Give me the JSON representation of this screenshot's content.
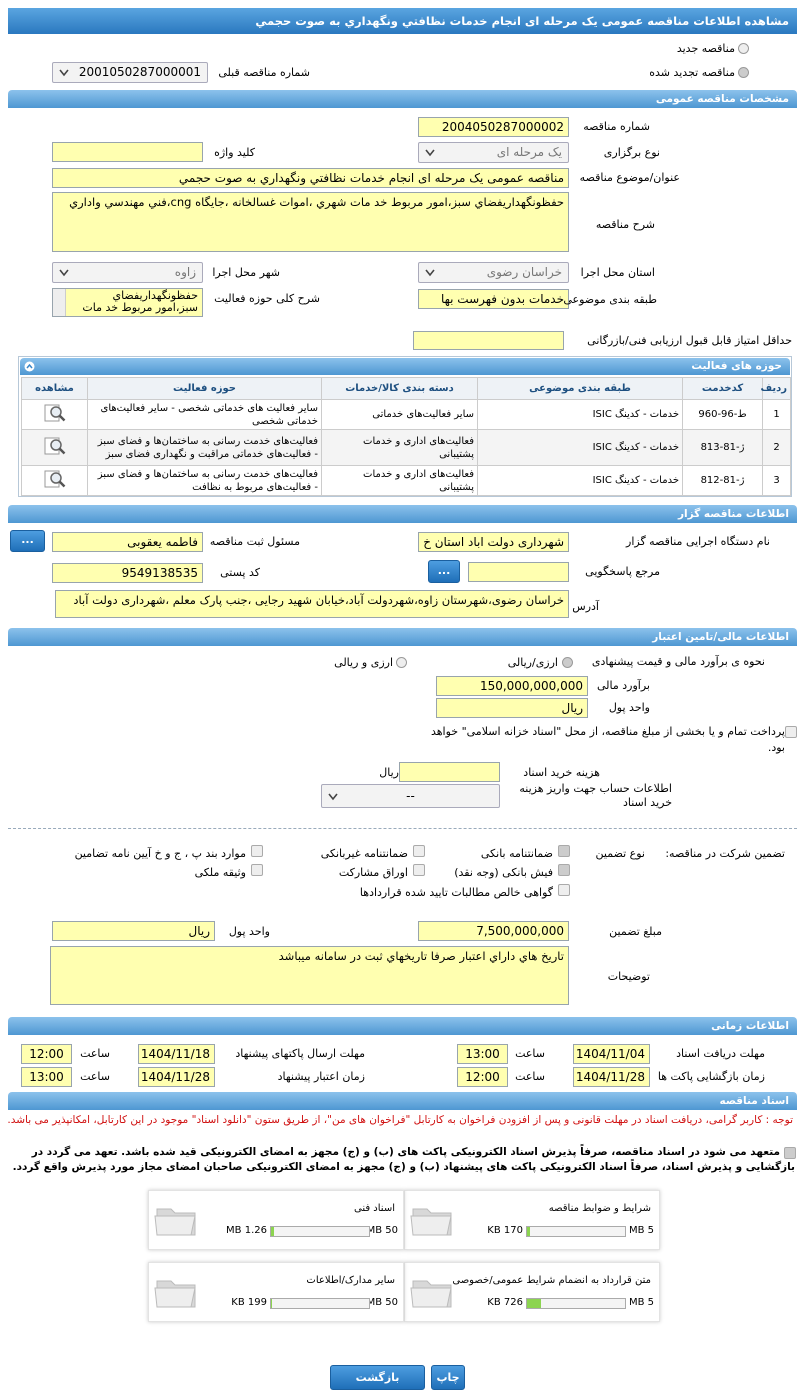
{
  "header": {
    "title": "مشاهده اطلاعات مناقصه عمومی یک مرحله ای انجام خدمات نظافتي ونگهداري به صوت حجمي"
  },
  "tender_kind": {
    "options": [
      "مناقصه جدید",
      "مناقصه تجدید شده"
    ],
    "previous_label": "شماره مناقصه قبلی",
    "previous_number": "2001050287000001"
  },
  "general": {
    "title": "مشخصات مناقصه عمومی",
    "number_label": "شماره مناقصه",
    "number": "2004050287000002",
    "holding_label": "نوع برگزاری",
    "holding": "یک مرحله ای",
    "keyword_label": "کلید واژه",
    "subject_label": "عنوان/موضوع مناقصه",
    "subject": "مناقصه عمومی یک مرحله ای انجام خدمات نظافتي ونگهداري به صوت حجمي",
    "description_label": "شرح مناقصه",
    "description": "حفظونگهداريفضاي سبز،امور مربوط خد مات شهري ،اموات غسالخانه ،جايگاه cng،فني مهندسي واداري",
    "province_label": "استان محل اجرا",
    "province": "خراسان رضوی",
    "city_label": "شهر محل اجرا",
    "city": "زاوه",
    "category_label": "طبقه بندی موضوعی",
    "category": "خدمات بدون فهرست بها",
    "scope_label": "شرح کلی حوزه فعالیت",
    "scope": "حفظونگهداريفضاي سبز،امور مربوط خد مات",
    "min_score_label": "حداقل امتیاز قابل قبول ارزیابی فنی/بازرگانی"
  },
  "activities": {
    "title": "حوزه های فعالیت",
    "columns": [
      "ردیف",
      "کدخدمت",
      "طبقه بندی موضوعی",
      "دسته بندی کالا/خدمات",
      "حوزه فعالیت",
      "مشاهده"
    ],
    "rows": [
      [
        1,
        "ط-96-960",
        "خدمات - کدینگ ISIC",
        "سایر فعالیت‌های خدماتی",
        "سایر فعالیت های خدماتی شخصی - سایر فعالیت‌های خدماتی شخصی"
      ],
      [
        2,
        "ژ-81-813",
        "خدمات - کدینگ ISIC",
        "فعالیت‌های اداری و خدمات پشتیبانی",
        "فعالیت‌های خدمت رسانی به ساختمان‌ها و فضای سبز - فعالیت‌های خدماتی مراقبت و نگهداری فضای سبز"
      ],
      [
        3,
        "ژ-81-812",
        "خدمات - کدینگ ISIC",
        "فعالیت‌های اداری و خدمات پشتیبانی",
        "فعالیت‌های خدمت رسانی به ساختمان‌ها و فضای سبز - فعالیت‌های مربوط به نظافت"
      ]
    ]
  },
  "organizer": {
    "title": "اطلاعات مناقصه گزار",
    "agency_label": "نام دستگاه اجرایی مناقصه گزار",
    "agency": "شهرداری دولت اباد استان خ",
    "responsible_label": "مسئول ثبت مناقصه",
    "responsible": "فاطمه یعقوبی",
    "browse": "...",
    "reference_label": "مرجع پاسخگویی",
    "postal_label": "کد پستی",
    "postal_code": "9549138535",
    "address_label": "آدرس",
    "address": "خراسان رضوی،شهرستان زاوه،شهردولت آباد،خیابان شهید رجایی ،جنب پارک معلم ،شهرداری دولت آباد"
  },
  "finance": {
    "title": "اطلاعات مالی/تامین اعتبار",
    "method_label": "نحوه ی برآورد مالی و قیمت پیشنهادی",
    "method_options": [
      "ارزی/ریالی",
      "ارزی و ریالی"
    ],
    "estimate_label": "برآورد مالی",
    "estimate": "150,000,000,000",
    "currency_label": "واحد پول",
    "currency": "ریال",
    "treasury_note": "پرداخت تمام و یا بخشی از مبلغ مناقصه، از محل \"اسناد خزانه اسلامی\" خواهد بود.",
    "doc_fee_label": "هزینه خرید اسناد",
    "doc_fee_unit": "ریال",
    "account_label": "اطلاعات حساب جهت واریز هزینه خرید اسناد",
    "account": "--"
  },
  "guarantee": {
    "title": "تضمین شرکت در مناقصه:",
    "type_label": "نوع تضمین",
    "options": [
      "ضمانتنامه بانکی",
      "ضمانتنامه غیربانکی",
      "موارد بند پ ، ج و خ آیین نامه تضامین",
      "فیش بانکی (وجه نقد)",
      "اوراق مشارکت",
      "وثیقه ملکی",
      "گواهی خالص مطالبات تایید شده قراردادها"
    ],
    "amount_label": "مبلغ تضمین",
    "amount": "7,500,000,000",
    "currency_label": "واحد پول",
    "currency": "ریال",
    "notes_label": "توضیحات",
    "notes": "تاريخ هاي داراي اعتبار صرفا تاريخهاي ثبت در سامانه ميباشد"
  },
  "timing": {
    "title": "اطلاعات زمانی",
    "hour_label": "ساعت",
    "items": [
      {
        "label": "مهلت دریافت اسناد",
        "date": "1404/11/04",
        "time": "13:00"
      },
      {
        "label": "مهلت ارسال پاکتهای پیشنهاد",
        "date": "1404/11/18",
        "time": "12:00"
      },
      {
        "label": "زمان بازگشایی پاکت ها",
        "date": "1404/11/28",
        "time": "12:00"
      },
      {
        "label": "زمان اعتبار پیشنهاد",
        "date": "1404/11/28",
        "time": "13:00"
      }
    ]
  },
  "documents": {
    "title": "اسناد مناقصه",
    "note": "توجه : کاربر گرامی، دریافت اسناد در مهلت قانونی و پس از افزودن فراخوان به کارتابل \"فراخوان های من\"، از طریق ستون \"دانلود اسناد\" موجود در این کارتابل، امکانپذیر می باشد.",
    "commitment": "متعهد می شود در اسناد مناقصه، صرفاً پذیرش اسناد الکترونیکی پاکت های (ب) و (ج) مجهز به امضای الکترونیکی قید شده باشد. تعهد می گردد در بازگشایی و پذیرش اسناد، صرفاً اسناد الکترونیکی پاکت های پیشنهاد (ب) و (ج) مجهز به امضای الکترونیکی صاحبان امضای مجاز مورد پذیرش واقع گردد.",
    "files": [
      {
        "name": "شرایط و ضوابط مناقصه",
        "size": "170 KB",
        "limit": "5 MB"
      },
      {
        "name": "اسناد فنی",
        "size": "1.26 MB",
        "limit": "50 MB"
      },
      {
        "name": "متن قرارداد به انضمام شرایط عمومی/خصوصی",
        "size": "726 KB",
        "limit": "5 MB"
      },
      {
        "name": "سایر مدارک/اطلاعات",
        "size": "199 KB",
        "limit": "50 MB"
      }
    ],
    "print": "چاپ",
    "back": "بازگشت"
  }
}
